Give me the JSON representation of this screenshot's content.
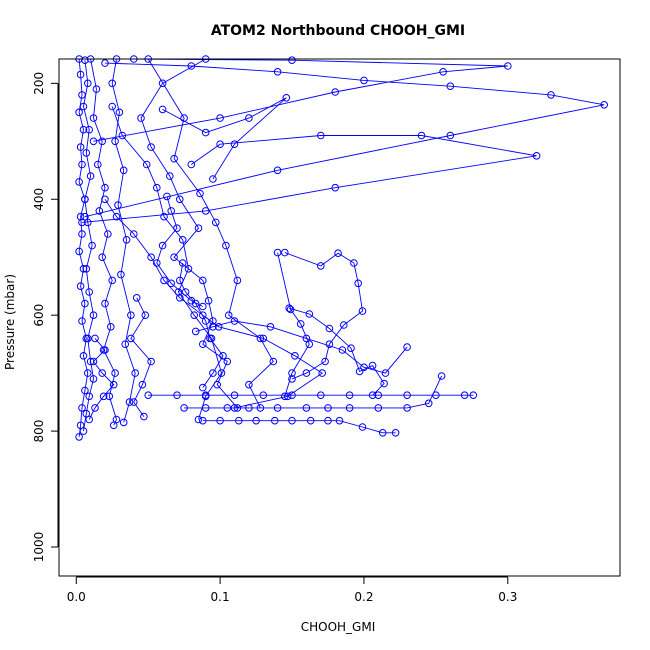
{
  "chart_data": {
    "type": "scatter",
    "title": "ATOM2 Northbound CHOOH_GMI",
    "xlabel": "CHOOH_GMI",
    "ylabel": "Pressure (mbar)",
    "xlim": [
      -0.012,
      0.378
    ],
    "ylim": [
      1050,
      158
    ],
    "y_reversed": true,
    "x_ticks": [
      0.0,
      0.1,
      0.2,
      0.3
    ],
    "x_tick_labels": [
      "0.0",
      "0.1",
      "0.2",
      "0.3"
    ],
    "y_ticks": [
      200,
      400,
      600,
      800,
      1000
    ],
    "y_tick_labels": [
      "200",
      "400",
      "600",
      "800",
      "1000"
    ],
    "grid": false,
    "legend": "none",
    "marker": "open-circle",
    "color": "#0000ff",
    "series": [
      {
        "points": [
          [
            0.002,
            158
          ],
          [
            0.003,
            185
          ],
          [
            0.004,
            220
          ],
          [
            0.002,
            250
          ],
          [
            0.005,
            280
          ],
          [
            0.003,
            310
          ],
          [
            0.004,
            340
          ],
          [
            0.002,
            370
          ],
          [
            0.006,
            400
          ],
          [
            0.003,
            430
          ],
          [
            0.004,
            460
          ],
          [
            0.002,
            490
          ],
          [
            0.005,
            520
          ],
          [
            0.003,
            550
          ],
          [
            0.006,
            580
          ],
          [
            0.004,
            610
          ],
          [
            0.007,
            640
          ],
          [
            0.005,
            670
          ],
          [
            0.008,
            700
          ],
          [
            0.006,
            730
          ],
          [
            0.004,
            760
          ],
          [
            0.003,
            790
          ],
          [
            0.002,
            810
          ]
        ]
      },
      {
        "points": [
          [
            0.006,
            160
          ],
          [
            0.008,
            200
          ],
          [
            0.005,
            240
          ],
          [
            0.009,
            280
          ],
          [
            0.007,
            320
          ],
          [
            0.01,
            360
          ],
          [
            0.006,
            400
          ],
          [
            0.008,
            440
          ],
          [
            0.011,
            480
          ],
          [
            0.007,
            520
          ],
          [
            0.009,
            560
          ],
          [
            0.012,
            600
          ],
          [
            0.008,
            640
          ],
          [
            0.01,
            680
          ],
          [
            0.012,
            710
          ],
          [
            0.009,
            740
          ],
          [
            0.007,
            770
          ],
          [
            0.005,
            800
          ]
        ]
      },
      {
        "points": [
          [
            0.01,
            158
          ],
          [
            0.014,
            210
          ],
          [
            0.012,
            260
          ],
          [
            0.018,
            300
          ],
          [
            0.015,
            340
          ],
          [
            0.02,
            380
          ],
          [
            0.016,
            420
          ],
          [
            0.022,
            460
          ],
          [
            0.018,
            500
          ],
          [
            0.025,
            540
          ],
          [
            0.02,
            580
          ],
          [
            0.024,
            620
          ],
          [
            0.019,
            660
          ],
          [
            0.027,
            700
          ],
          [
            0.023,
            740
          ],
          [
            0.028,
            780
          ],
          [
            0.026,
            790
          ]
        ]
      },
      {
        "points": [
          [
            0.028,
            158
          ],
          [
            0.025,
            200
          ],
          [
            0.03,
            250
          ],
          [
            0.027,
            300
          ],
          [
            0.033,
            350
          ],
          [
            0.029,
            410
          ],
          [
            0.035,
            470
          ],
          [
            0.031,
            530
          ],
          [
            0.038,
            600
          ],
          [
            0.034,
            650
          ],
          [
            0.041,
            700
          ],
          [
            0.037,
            750
          ],
          [
            0.033,
            785
          ]
        ]
      },
      {
        "points": [
          [
            0.09,
            158
          ],
          [
            0.06,
            200
          ],
          [
            0.045,
            260
          ],
          [
            0.052,
            310
          ],
          [
            0.065,
            360
          ],
          [
            0.072,
            400
          ],
          [
            0.085,
            450
          ],
          [
            0.068,
            500
          ],
          [
            0.088,
            540
          ],
          [
            0.092,
            575
          ],
          [
            0.095,
            610
          ],
          [
            0.088,
            650
          ],
          [
            0.105,
            680
          ],
          [
            0.098,
            720
          ],
          [
            0.112,
            760
          ]
        ]
      },
      {
        "points": [
          [
            0.05,
            158
          ],
          [
            0.075,
            260
          ],
          [
            0.068,
            330
          ],
          [
            0.086,
            390
          ],
          [
            0.097,
            440
          ],
          [
            0.104,
            480
          ],
          [
            0.112,
            540
          ],
          [
            0.106,
            600
          ],
          [
            0.128,
            640
          ],
          [
            0.137,
            680
          ],
          [
            0.12,
            720
          ],
          [
            0.128,
            760
          ]
        ]
      },
      {
        "points": [
          [
            0.025,
            240
          ],
          [
            0.032,
            290
          ],
          [
            0.049,
            340
          ],
          [
            0.056,
            380
          ],
          [
            0.061,
            430
          ],
          [
            0.074,
            470
          ],
          [
            0.078,
            520
          ],
          [
            0.071,
            560
          ],
          [
            0.082,
            600
          ],
          [
            0.094,
            640
          ],
          [
            0.101,
            700
          ],
          [
            0.09,
            740
          ],
          [
            0.085,
            780
          ]
        ]
      },
      {
        "points": [
          [
            0.02,
            400
          ],
          [
            0.028,
            430
          ],
          [
            0.04,
            460
          ],
          [
            0.052,
            500
          ],
          [
            0.061,
            540
          ],
          [
            0.072,
            570
          ],
          [
            0.088,
            600
          ],
          [
            0.099,
            620
          ],
          [
            0.13,
            640
          ],
          [
            0.152,
            670
          ],
          [
            0.171,
            700
          ],
          [
            0.147,
            740
          ],
          [
            0.11,
            760
          ]
        ]
      },
      {
        "points": [
          [
            0.004,
            440
          ],
          [
            0.09,
            420
          ],
          [
            0.18,
            380
          ],
          [
            0.32,
            325
          ],
          [
            0.24,
            290
          ],
          [
            0.17,
            290
          ],
          [
            0.1,
            305
          ],
          [
            0.08,
            340
          ]
        ]
      },
      {
        "points": [
          [
            0.006,
            430
          ],
          [
            0.14,
            350
          ],
          [
            0.26,
            290
          ],
          [
            0.367,
            237
          ],
          [
            0.33,
            220
          ],
          [
            0.26,
            205
          ],
          [
            0.2,
            195
          ],
          [
            0.14,
            180
          ],
          [
            0.08,
            170
          ],
          [
            0.02,
            165
          ]
        ]
      },
      {
        "points": [
          [
            0.012,
            300
          ],
          [
            0.1,
            260
          ],
          [
            0.18,
            215
          ],
          [
            0.255,
            180
          ],
          [
            0.3,
            170
          ],
          [
            0.15,
            160
          ],
          [
            0.04,
            158
          ]
        ]
      },
      {
        "points": [
          [
            0.06,
            245
          ],
          [
            0.09,
            285
          ],
          [
            0.12,
            260
          ],
          [
            0.146,
            225
          ],
          [
            0.11,
            305
          ],
          [
            0.095,
            365
          ]
        ]
      },
      {
        "points": [
          [
            0.145,
            492
          ],
          [
            0.17,
            515
          ],
          [
            0.182,
            493
          ],
          [
            0.193,
            510
          ],
          [
            0.196,
            545
          ],
          [
            0.199,
            593
          ],
          [
            0.186,
            617
          ],
          [
            0.176,
            650
          ],
          [
            0.173,
            680
          ],
          [
            0.16,
            700
          ],
          [
            0.15,
            710
          ]
        ]
      },
      {
        "points": [
          [
            0.148,
            588
          ],
          [
            0.162,
            598
          ],
          [
            0.176,
            623
          ],
          [
            0.191,
            657
          ],
          [
            0.197,
            697
          ],
          [
            0.206,
            687
          ],
          [
            0.214,
            718
          ],
          [
            0.206,
            738
          ]
        ]
      },
      {
        "points": [
          [
            0.14,
            492
          ],
          [
            0.149,
            590
          ],
          [
            0.156,
            615
          ],
          [
            0.162,
            650
          ],
          [
            0.15,
            700
          ],
          [
            0.145,
            740
          ]
        ]
      },
      {
        "points": [
          [
            0.05,
            738
          ],
          [
            0.07,
            738
          ],
          [
            0.09,
            738
          ],
          [
            0.11,
            738
          ],
          [
            0.13,
            738
          ],
          [
            0.15,
            738
          ],
          [
            0.17,
            738
          ],
          [
            0.19,
            738
          ],
          [
            0.21,
            738
          ],
          [
            0.23,
            738
          ],
          [
            0.25,
            738
          ],
          [
            0.27,
            738
          ],
          [
            0.276,
            738
          ]
        ]
      },
      {
        "points": [
          [
            0.075,
            760
          ],
          [
            0.09,
            760
          ],
          [
            0.105,
            760
          ],
          [
            0.12,
            760
          ],
          [
            0.14,
            760
          ],
          [
            0.16,
            760
          ],
          [
            0.175,
            760
          ],
          [
            0.19,
            760
          ],
          [
            0.21,
            760
          ],
          [
            0.23,
            760
          ],
          [
            0.245,
            752
          ],
          [
            0.254,
            705
          ]
        ]
      },
      {
        "points": [
          [
            0.088,
            782
          ],
          [
            0.1,
            782
          ],
          [
            0.113,
            782
          ],
          [
            0.125,
            782
          ],
          [
            0.138,
            782
          ],
          [
            0.15,
            782
          ],
          [
            0.163,
            782
          ],
          [
            0.175,
            782
          ],
          [
            0.183,
            782
          ],
          [
            0.199,
            793
          ],
          [
            0.213,
            803
          ],
          [
            0.222,
            803
          ]
        ]
      },
      {
        "points": [
          [
            0.088,
            725
          ],
          [
            0.095,
            700
          ],
          [
            0.102,
            670
          ],
          [
            0.093,
            640
          ],
          [
            0.09,
            610
          ],
          [
            0.083,
            580
          ],
          [
            0.076,
            560
          ],
          [
            0.072,
            540
          ],
          [
            0.074,
            510
          ]
        ]
      },
      {
        "points": [
          [
            0.013,
            640
          ],
          [
            0.02,
            660
          ],
          [
            0.012,
            680
          ],
          [
            0.018,
            700
          ],
          [
            0.026,
            720
          ],
          [
            0.019,
            740
          ],
          [
            0.013,
            760
          ],
          [
            0.009,
            780
          ]
        ]
      },
      {
        "points": [
          [
            0.042,
            570
          ],
          [
            0.048,
            600
          ],
          [
            0.038,
            640
          ],
          [
            0.052,
            680
          ],
          [
            0.046,
            720
          ],
          [
            0.04,
            750
          ],
          [
            0.047,
            775
          ]
        ]
      },
      {
        "points": [
          [
            0.063,
            395
          ],
          [
            0.066,
            420
          ],
          [
            0.07,
            450
          ],
          [
            0.06,
            480
          ],
          [
            0.056,
            510
          ],
          [
            0.066,
            545
          ],
          [
            0.08,
            575
          ],
          [
            0.088,
            585
          ]
        ]
      },
      {
        "points": [
          [
            0.083,
            628
          ],
          [
            0.095,
            620
          ],
          [
            0.11,
            610
          ],
          [
            0.135,
            620
          ],
          [
            0.16,
            640
          ],
          [
            0.185,
            660
          ],
          [
            0.2,
            690
          ],
          [
            0.215,
            700
          ],
          [
            0.23,
            655
          ]
        ]
      }
    ]
  }
}
